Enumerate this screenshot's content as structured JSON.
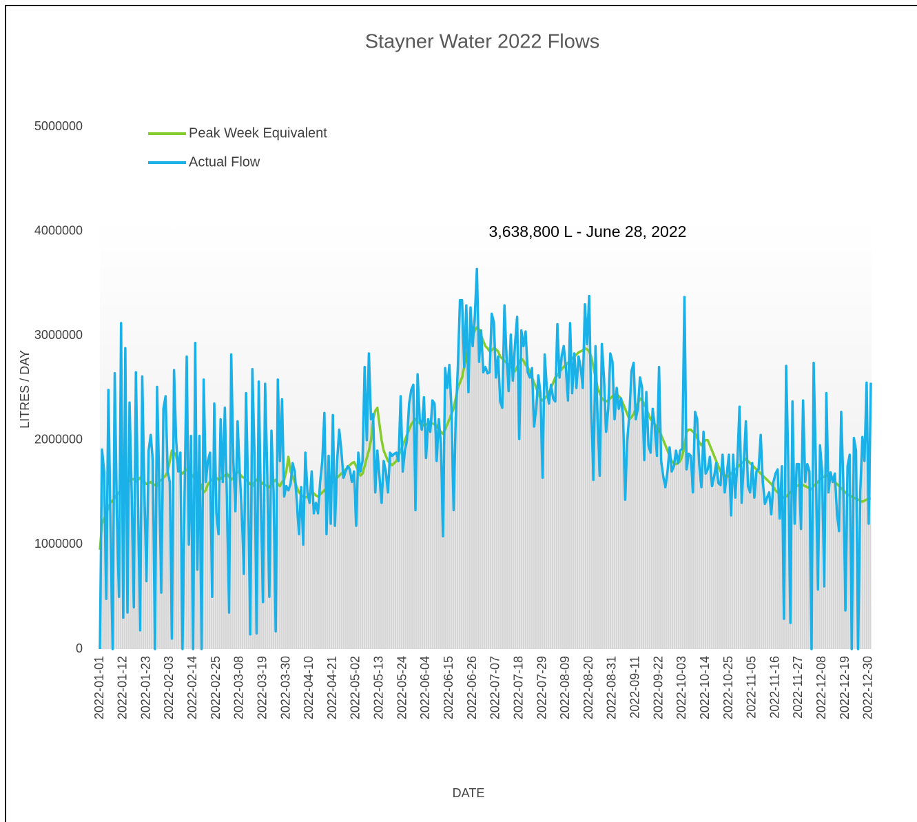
{
  "chart_data": {
    "type": "line",
    "title": "Stayner Water 2022 Flows",
    "y_label": "LITRES / DAY",
    "x_label": "DATE",
    "annotation": "3,638,800 L - June 28, 2022",
    "legend": "top-left",
    "grid": false,
    "ylim": [
      0,
      5000000
    ],
    "yticks": [
      0,
      1000000,
      2000000,
      3000000,
      4000000,
      5000000
    ],
    "categories": [
      "2022-01-01",
      null,
      null,
      null,
      null,
      null,
      null,
      null,
      null,
      null,
      null,
      "2022-01-12",
      null,
      null,
      null,
      null,
      null,
      null,
      null,
      null,
      null,
      null,
      "2022-01-23",
      null,
      null,
      null,
      null,
      null,
      null,
      null,
      null,
      null,
      null,
      "2022-02-03",
      null,
      null,
      null,
      null,
      null,
      null,
      null,
      null,
      null,
      null,
      "2022-02-14",
      null,
      null,
      null,
      null,
      null,
      null,
      null,
      null,
      null,
      null,
      "2022-02-25",
      null,
      null,
      null,
      null,
      null,
      null,
      null,
      null,
      null,
      null,
      "2022-03-08",
      null,
      null,
      null,
      null,
      null,
      null,
      null,
      null,
      null,
      null,
      "2022-03-19",
      null,
      null,
      null,
      null,
      null,
      null,
      null,
      null,
      null,
      null,
      "2022-03-30",
      null,
      null,
      null,
      null,
      null,
      null,
      null,
      null,
      null,
      null,
      "2022-04-10",
      null,
      null,
      null,
      null,
      null,
      null,
      null,
      null,
      null,
      null,
      "2022-04-21",
      null,
      null,
      null,
      null,
      null,
      null,
      null,
      null,
      null,
      null,
      "2022-05-02",
      null,
      null,
      null,
      null,
      null,
      null,
      null,
      null,
      null,
      null,
      "2022-05-13",
      null,
      null,
      null,
      null,
      null,
      null,
      null,
      null,
      null,
      null,
      "2022-05-24",
      null,
      null,
      null,
      null,
      null,
      null,
      null,
      null,
      null,
      null,
      "2022-06-04",
      null,
      null,
      null,
      null,
      null,
      null,
      null,
      null,
      null,
      null,
      "2022-06-15",
      null,
      null,
      null,
      null,
      null,
      null,
      null,
      null,
      null,
      null,
      "2022-06-26",
      null,
      null,
      null,
      null,
      null,
      null,
      null,
      null,
      null,
      null,
      "2022-07-07",
      null,
      null,
      null,
      null,
      null,
      null,
      null,
      null,
      null,
      null,
      "2022-07-18",
      null,
      null,
      null,
      null,
      null,
      null,
      null,
      null,
      null,
      null,
      "2022-07-29",
      null,
      null,
      null,
      null,
      null,
      null,
      null,
      null,
      null,
      null,
      "2022-08-09",
      null,
      null,
      null,
      null,
      null,
      null,
      null,
      null,
      null,
      null,
      "2022-08-20",
      null,
      null,
      null,
      null,
      null,
      null,
      null,
      null,
      null,
      null,
      "2022-08-31",
      null,
      null,
      null,
      null,
      null,
      null,
      null,
      null,
      null,
      null,
      "2022-09-11",
      null,
      null,
      null,
      null,
      null,
      null,
      null,
      null,
      null,
      null,
      "2022-09-22",
      null,
      null,
      null,
      null,
      null,
      null,
      null,
      null,
      null,
      null,
      "2022-10-03",
      null,
      null,
      null,
      null,
      null,
      null,
      null,
      null,
      null,
      null,
      "2022-10-14",
      null,
      null,
      null,
      null,
      null,
      null,
      null,
      null,
      null,
      null,
      "2022-10-25",
      null,
      null,
      null,
      null,
      null,
      null,
      null,
      null,
      null,
      null,
      "2022-11-05",
      null,
      null,
      null,
      null,
      null,
      null,
      null,
      null,
      null,
      null,
      "2022-11-16",
      null,
      null,
      null,
      null,
      null,
      null,
      null,
      null,
      null,
      null,
      "2022-11-27",
      null,
      null,
      null,
      null,
      null,
      null,
      null,
      null,
      null,
      null,
      "2022-12-08",
      null,
      null,
      null,
      null,
      null,
      null,
      null,
      null,
      null,
      null,
      "2022-12-19",
      null,
      null,
      null,
      null,
      null,
      null,
      null,
      null,
      null,
      null,
      "2022-12-30",
      null
    ],
    "series": [
      {
        "name": "Peak Week Equivalent",
        "color": "#84cc2c",
        "values": [
          950000,
          1200000,
          1250000,
          1300000,
          1350000,
          1400000,
          1420000,
          1450000,
          1480000,
          1500000,
          1520000,
          1550000,
          1580000,
          1600000,
          1610000,
          1620000,
          1630000,
          1600000,
          1620000,
          1640000,
          1610000,
          1600000,
          1580000,
          1590000,
          1600000,
          1580000,
          1570000,
          1560000,
          1600000,
          1620000,
          1640000,
          1660000,
          1700000,
          1800000,
          1900000,
          1880000,
          1850000,
          1750000,
          1700000,
          1680000,
          1700000,
          1720000,
          1700000,
          1680000,
          1650000,
          1700000,
          1680000,
          1600000,
          1550000,
          1500000,
          1520000,
          1580000,
          1600000,
          1620000,
          1650000,
          1640000,
          1620000,
          1630000,
          1650000,
          1660000,
          1680000,
          1650000,
          1620000,
          1640000,
          1680000,
          1700000,
          1680000,
          1650000,
          1640000,
          1620000,
          1600000,
          1580000,
          1560000,
          1600000,
          1620000,
          1640000,
          1600000,
          1580000,
          1570000,
          1560000,
          1550000,
          1580000,
          1600000,
          1620000,
          1580000,
          1560000,
          1600000,
          1620000,
          1700000,
          1840000,
          1700000,
          1650000,
          1600000,
          1550000,
          1500000,
          1480000,
          1460000,
          1450000,
          1460000,
          1480000,
          1500000,
          1490000,
          1470000,
          1460000,
          1480000,
          1500000,
          1520000,
          1540000,
          1560000,
          1580000,
          1600000,
          1620000,
          1640000,
          1660000,
          1680000,
          1700000,
          1720000,
          1740000,
          1760000,
          1780000,
          1790000,
          1750000,
          1700000,
          1660000,
          1680000,
          1750000,
          1830000,
          1900000,
          2000000,
          2200000,
          2280000,
          2310000,
          2150000,
          2000000,
          1900000,
          1850000,
          1800000,
          1780000,
          1760000,
          1780000,
          1800000,
          1850000,
          1900000,
          1950000,
          2000000,
          2050000,
          2100000,
          2150000,
          2180000,
          2200000,
          2180000,
          2160000,
          2150000,
          2140000,
          2150000,
          2160000,
          2170000,
          2160000,
          2150000,
          2140000,
          2100000,
          2080000,
          2060000,
          2100000,
          2150000,
          2200000,
          2250000,
          2300000,
          2400000,
          2500000,
          2550000,
          2600000,
          2700000,
          2800000,
          2900000,
          2950000,
          3000000,
          3050000,
          3080000,
          3060000,
          3000000,
          2950000,
          2900000,
          2880000,
          2850000,
          2860000,
          2880000,
          2870000,
          2850000,
          2800000,
          2780000,
          2760000,
          2740000,
          2720000,
          2700000,
          2680000,
          2660000,
          2700000,
          2750000,
          2780000,
          2760000,
          2720000,
          2700000,
          2650000,
          2600000,
          2550000,
          2500000,
          2450000,
          2400000,
          2380000,
          2400000,
          2420000,
          2450000,
          2500000,
          2550000,
          2600000,
          2620000,
          2650000,
          2680000,
          2700000,
          2720000,
          2740000,
          2760000,
          2780000,
          2800000,
          2820000,
          2840000,
          2850000,
          2860000,
          2880000,
          2870000,
          2850000,
          2800000,
          2700000,
          2600000,
          2500000,
          2450000,
          2400000,
          2380000,
          2370000,
          2380000,
          2400000,
          2420000,
          2430000,
          2440000,
          2420000,
          2400000,
          2350000,
          2300000,
          2250000,
          2200000,
          2220000,
          2250000,
          2300000,
          2350000,
          2400000,
          2380000,
          2350000,
          2300000,
          2250000,
          2200000,
          2180000,
          2150000,
          2120000,
          2100000,
          2050000,
          2000000,
          1950000,
          1900000,
          1850000,
          1800000,
          1780000,
          1770000,
          1780000,
          1800000,
          1850000,
          1950000,
          2080000,
          2100000,
          2100000,
          2080000,
          2060000,
          2020000,
          1980000,
          1950000,
          1980000,
          2000000,
          2000000,
          1950000,
          1900000,
          1850000,
          1800000,
          1750000,
          1700000,
          1680000,
          1660000,
          1650000,
          1660000,
          1680000,
          1700000,
          1720000,
          1740000,
          1760000,
          1780000,
          1800000,
          1820000,
          1800000,
          1780000,
          1760000,
          1740000,
          1720000,
          1700000,
          1680000,
          1660000,
          1640000,
          1620000,
          1600000,
          1580000,
          1550000,
          1520000,
          1500000,
          1480000,
          1460000,
          1450000,
          1460000,
          1480000,
          1500000,
          1520000,
          1540000,
          1560000,
          1570000,
          1580000,
          1570000,
          1560000,
          1550000,
          1540000,
          1530000,
          1560000,
          1580000,
          1600000,
          1620000,
          1640000,
          1650000,
          1660000,
          1650000,
          1640000,
          1620000,
          1600000,
          1580000,
          1560000,
          1540000,
          1520000,
          1500000,
          1480000,
          1470000,
          1460000,
          1450000,
          1440000,
          1430000,
          1420000,
          1410000,
          1420000,
          1430000,
          1440000,
          1440000
        ]
      },
      {
        "name": "Actual Flow",
        "color": "#1ab0e8",
        "values": [
          0,
          1910000,
          1700000,
          480000,
          2480000,
          1200000,
          0,
          2640000,
          1300000,
          500000,
          3120000,
          300000,
          2880000,
          350000,
          2360000,
          1500000,
          400000,
          2650000,
          1400000,
          180000,
          2610000,
          1500000,
          650000,
          1900000,
          2050000,
          1800000,
          0,
          2510000,
          1600000,
          540000,
          2300000,
          2420000,
          1700000,
          1600000,
          100000,
          2670000,
          2000000,
          1700000,
          1880000,
          0,
          1500000,
          2800000,
          1000000,
          2040000,
          0,
          2930000,
          760000,
          2040000,
          0,
          2580000,
          1600000,
          1800000,
          1880000,
          500000,
          2350000,
          1300000,
          1100000,
          2200000,
          1600000,
          2310000,
          1400000,
          350000,
          2820000,
          1800000,
          1320000,
          2180000,
          1700000,
          1300000,
          720000,
          2450000,
          1500000,
          140000,
          2680000,
          1840000,
          150000,
          2560000,
          1400000,
          450000,
          2540000,
          1700000,
          500000,
          2090000,
          1500000,
          170000,
          2580000,
          1800000,
          2390000,
          1460000,
          1560000,
          1520000,
          1580000,
          1780000,
          1700000,
          1400000,
          1100000,
          1550000,
          1000000,
          1880000,
          1500000,
          1400000,
          1700000,
          1300000,
          1400000,
          1300000,
          1600000,
          1800000,
          2260000,
          1100000,
          1850000,
          1200000,
          2240000,
          1180000,
          1800000,
          2100000,
          1900000,
          1640000,
          1700000,
          1750000,
          1720000,
          1600000,
          1700000,
          1180000,
          1880000,
          1700000,
          1800000,
          2700000,
          2000000,
          2830000,
          2200000,
          2250000,
          1500000,
          1900000,
          1650000,
          1400000,
          1800000,
          1700000,
          1500000,
          1880000,
          1850000,
          1870000,
          1880000,
          1800000,
          2420000,
          1700000,
          1900000,
          2000000,
          2350000,
          2480000,
          2530000,
          1330000,
          2630000,
          2200000,
          2100000,
          2410000,
          1830000,
          2200000,
          2080000,
          2380000,
          2350000,
          1800000,
          2200000,
          1970000,
          1080000,
          2690000,
          2500000,
          2720000,
          2300000,
          1330000,
          2200000,
          2700000,
          3340000,
          3340000,
          2700000,
          3290000,
          2460000,
          3270000,
          2900000,
          3180000,
          3638800,
          2750000,
          3050000,
          2650000,
          2700000,
          2640000,
          2650000,
          3210000,
          3130000,
          2600000,
          2800000,
          2370000,
          2310000,
          3290000,
          2800000,
          2470000,
          3010000,
          2570000,
          2920000,
          3180000,
          2010000,
          3050000,
          2900000,
          3040000,
          2650000,
          2600000,
          2690000,
          2130000,
          2300000,
          2620000,
          2450000,
          1640000,
          2820000,
          2500000,
          2350000,
          2530000,
          2400000,
          2370000,
          3110000,
          2600000,
          2800000,
          2900000,
          2700000,
          2380000,
          3120000,
          2450000,
          2830000,
          2500000,
          2800000,
          2700000,
          2500000,
          3300000,
          2920000,
          3380000,
          2300000,
          1620000,
          2900000,
          2200000,
          1660000,
          2920000,
          2600000,
          2080000,
          2300000,
          2830000,
          2750000,
          2200000,
          2500000,
          2300000,
          2400000,
          2250000,
          1430000,
          2000000,
          2250000,
          2660000,
          2740000,
          2200000,
          2300000,
          2600000,
          2500000,
          1810000,
          2460000,
          1950000,
          1880000,
          2300000,
          2130000,
          1850000,
          2700000,
          1800000,
          1650000,
          1550000,
          1700000,
          1930000,
          1700000,
          1750000,
          1900000,
          1780000,
          1900000,
          1920000,
          3370000,
          1720000,
          1870000,
          1850000,
          1500000,
          2270000,
          2200000,
          1760000,
          1550000,
          2080000,
          1680000,
          1720000,
          1840000,
          1560000,
          1650000,
          1780000,
          1590000,
          1570000,
          1860000,
          1500000,
          1680000,
          1860000,
          1280000,
          1860000,
          1450000,
          1800000,
          2320000,
          1400000,
          1780000,
          2180000,
          1560000,
          1500000,
          1780000,
          1450000,
          1700000,
          1720000,
          2050000,
          1600000,
          1390000,
          1450000,
          1500000,
          1290000,
          1600000,
          1680000,
          1720000,
          1250000,
          1750000,
          290000,
          2710000,
          1800000,
          250000,
          2370000,
          1200000,
          1770000,
          1770000,
          1150000,
          2380000,
          1600000,
          1770000,
          1700000,
          0,
          2740000,
          1800000,
          570000,
          1950000,
          1700000,
          600000,
          2450000,
          1500000,
          1690000,
          1600000,
          1680000,
          1300000,
          1130000,
          2270000,
          1600000,
          370000,
          1750000,
          1860000,
          0,
          2020000,
          1900000,
          0,
          1500000,
          2030000,
          1800000,
          2550000,
          1200000,
          2550000
        ]
      }
    ]
  }
}
